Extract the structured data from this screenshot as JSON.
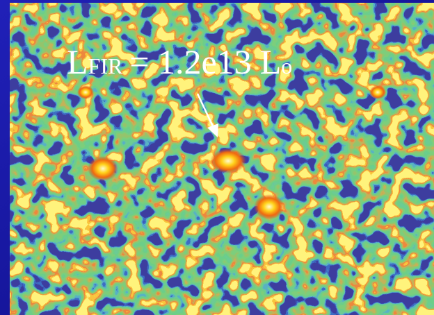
{
  "annotation": {
    "symbol": "L",
    "subscript": "FIR",
    "text": "= 1.2e13",
    "unit": "L",
    "unit_subscript": "o"
  }
}
